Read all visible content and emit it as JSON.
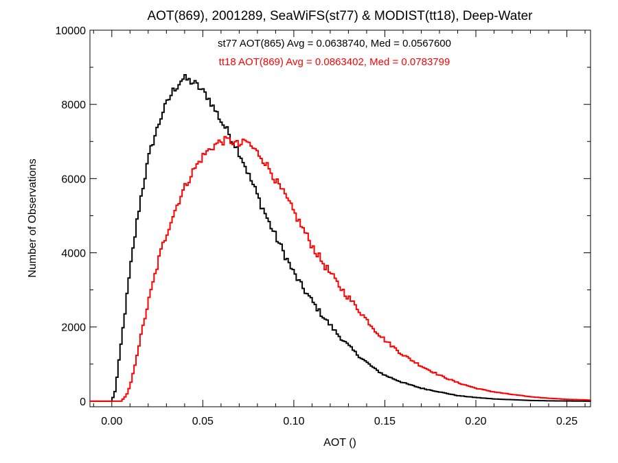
{
  "chart_data": {
    "type": "line",
    "step": true,
    "title": "AOT(869), 2001289, SeaWiFS(st77) & MODIST(tt18), Deep-Water",
    "xlabel": "AOT ()",
    "ylabel": "Number of Observations",
    "xlim": [
      -0.012,
      0.263
    ],
    "ylim": [
      -150,
      10000
    ],
    "xticks": [
      0.0,
      0.05,
      0.1,
      0.15,
      0.2,
      0.25
    ],
    "xtick_labels": [
      "0.00",
      "0.05",
      "0.10",
      "0.15",
      "0.20",
      "0.25"
    ],
    "yticks": [
      0,
      2000,
      4000,
      6000,
      8000,
      10000
    ],
    "ytick_labels": [
      "0",
      "2000",
      "4000",
      "6000",
      "8000",
      "10000"
    ],
    "grid": false,
    "legend_position": "top-center",
    "series": [
      {
        "name": "st77 AOT(865) Avg = 0.0638740, Med = 0.0567600",
        "color": "#000000",
        "x": [
          -0.012,
          0.0,
          0.002,
          0.004,
          0.006,
          0.008,
          0.01,
          0.012,
          0.014,
          0.016,
          0.018,
          0.02,
          0.022,
          0.024,
          0.026,
          0.028,
          0.03,
          0.032,
          0.034,
          0.036,
          0.038,
          0.04,
          0.042,
          0.044,
          0.046,
          0.048,
          0.05,
          0.052,
          0.054,
          0.056,
          0.058,
          0.06,
          0.062,
          0.064,
          0.066,
          0.068,
          0.07,
          0.072,
          0.074,
          0.076,
          0.078,
          0.08,
          0.082,
          0.084,
          0.086,
          0.088,
          0.09,
          0.092,
          0.094,
          0.096,
          0.098,
          0.1,
          0.105,
          0.11,
          0.115,
          0.12,
          0.125,
          0.13,
          0.135,
          0.14,
          0.145,
          0.15,
          0.16,
          0.17,
          0.18,
          0.19,
          0.2,
          0.21,
          0.22,
          0.23,
          0.24,
          0.25,
          0.263
        ],
        "y": [
          0,
          0,
          300,
          1100,
          1900,
          2700,
          3500,
          4200,
          4900,
          5500,
          6000,
          6500,
          6900,
          7200,
          7500,
          7800,
          8000,
          8200,
          8400,
          8500,
          8650,
          8700,
          8650,
          8600,
          8550,
          8450,
          8350,
          8250,
          8100,
          7900,
          7750,
          7550,
          7400,
          7250,
          7050,
          6900,
          6700,
          6500,
          6250,
          6000,
          5800,
          5550,
          5300,
          5100,
          4850,
          4650,
          4450,
          4250,
          4050,
          3850,
          3650,
          3450,
          3050,
          2700,
          2350,
          2050,
          1750,
          1500,
          1250,
          1050,
          850,
          700,
          500,
          350,
          250,
          150,
          100,
          60,
          40,
          20,
          10,
          5,
          0
        ]
      },
      {
        "name": "tt18 AOT(869) Avg = 0.0863402, Med = 0.0783799",
        "color": "#ff0000",
        "x": [
          -0.012,
          0.005,
          0.008,
          0.01,
          0.012,
          0.014,
          0.016,
          0.018,
          0.02,
          0.022,
          0.024,
          0.026,
          0.028,
          0.03,
          0.032,
          0.034,
          0.036,
          0.038,
          0.04,
          0.042,
          0.044,
          0.046,
          0.048,
          0.05,
          0.052,
          0.054,
          0.056,
          0.058,
          0.06,
          0.062,
          0.064,
          0.066,
          0.068,
          0.07,
          0.072,
          0.074,
          0.076,
          0.078,
          0.08,
          0.082,
          0.084,
          0.086,
          0.088,
          0.09,
          0.095,
          0.1,
          0.105,
          0.11,
          0.115,
          0.12,
          0.125,
          0.13,
          0.135,
          0.14,
          0.145,
          0.15,
          0.155,
          0.16,
          0.17,
          0.18,
          0.19,
          0.2,
          0.21,
          0.22,
          0.23,
          0.24,
          0.25,
          0.263
        ],
        "y": [
          0,
          0,
          150,
          400,
          800,
          1300,
          1750,
          2200,
          2650,
          3050,
          3450,
          3850,
          4200,
          4500,
          4800,
          5050,
          5300,
          5550,
          5750,
          5950,
          6150,
          6300,
          6450,
          6600,
          6700,
          6800,
          6880,
          6950,
          7000,
          7020,
          7030,
          7000,
          6950,
          6900,
          6950,
          7020,
          6900,
          6800,
          6700,
          6600,
          6450,
          6300,
          6150,
          5950,
          5550,
          5100,
          4650,
          4200,
          3800,
          3450,
          3100,
          2800,
          2500,
          2200,
          1900,
          1650,
          1450,
          1250,
          950,
          700,
          500,
          350,
          250,
          180,
          120,
          80,
          50,
          30
        ]
      }
    ]
  }
}
